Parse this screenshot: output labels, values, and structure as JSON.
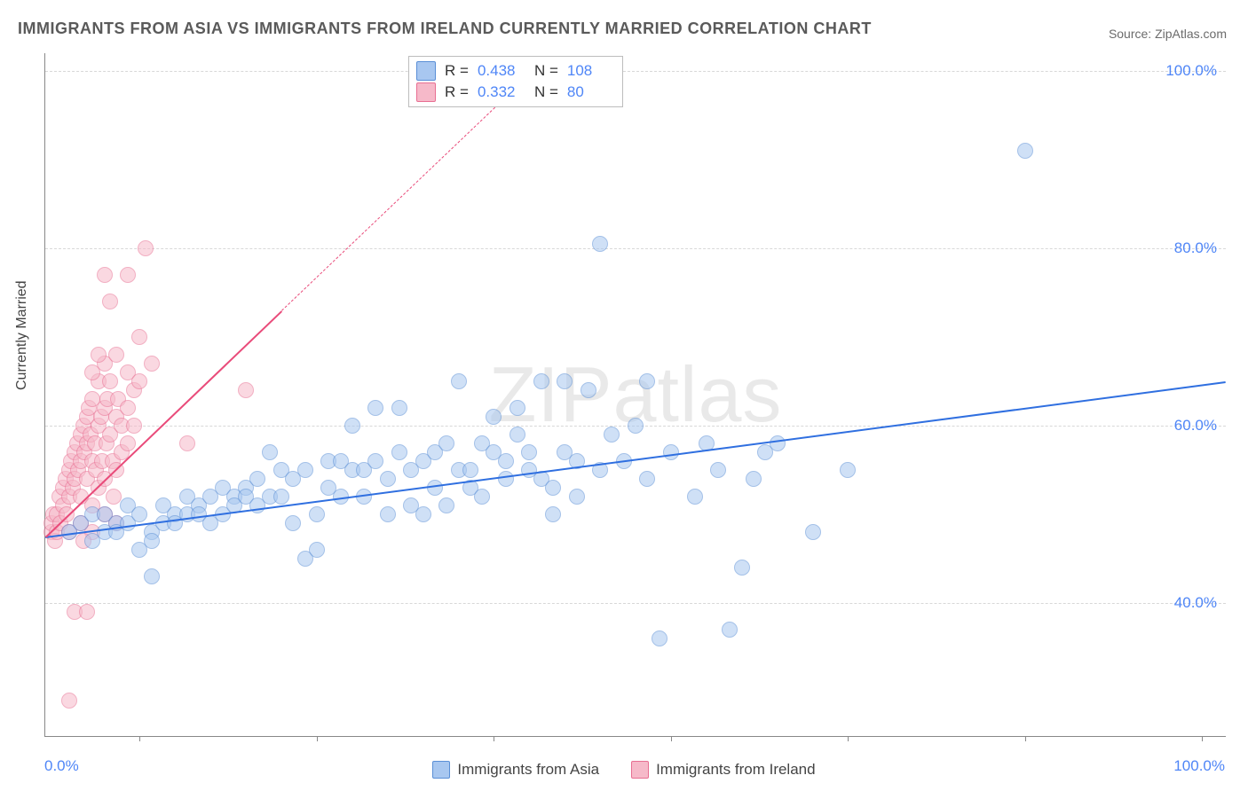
{
  "title": "IMMIGRANTS FROM ASIA VS IMMIGRANTS FROM IRELAND CURRENTLY MARRIED CORRELATION CHART",
  "source": "Source: ZipAtlas.com",
  "watermark": "ZIPatlas",
  "ylabel": "Currently Married",
  "chart": {
    "type": "scatter",
    "xlim": [
      0,
      100
    ],
    "ylim": [
      25,
      102
    ],
    "ytick_values": [
      40,
      60,
      80,
      100
    ],
    "ytick_labels": [
      "40.0%",
      "60.0%",
      "80.0%",
      "100.0%"
    ],
    "xtick_positions_pct": [
      8,
      23,
      38,
      53,
      68,
      83,
      98
    ],
    "x_lower_label": "0.0%",
    "x_upper_label": "100.0%",
    "background_color": "#ffffff",
    "grid_color": "#d8d8d8",
    "axis_color": "#888888",
    "marker_radius": 8,
    "marker_opacity": 0.55
  },
  "series": {
    "asia": {
      "label": "Immigrants from Asia",
      "fill_color": "#a8c7f0",
      "border_color": "#5a8fd6",
      "line_color": "#2f6fe0",
      "R": "0.438",
      "N": "108",
      "trend": {
        "x1": 0,
        "y1": 47.5,
        "x2": 100,
        "y2": 65,
        "width": 2.5,
        "dash": false
      },
      "points": [
        [
          2,
          48
        ],
        [
          3,
          49
        ],
        [
          4,
          50
        ],
        [
          4,
          47
        ],
        [
          5,
          48
        ],
        [
          5,
          50
        ],
        [
          6,
          49
        ],
        [
          6,
          48
        ],
        [
          7,
          49
        ],
        [
          7,
          51
        ],
        [
          8,
          50
        ],
        [
          8,
          46
        ],
        [
          9,
          48
        ],
        [
          9,
          47
        ],
        [
          10,
          49
        ],
        [
          10,
          51
        ],
        [
          11,
          50
        ],
        [
          11,
          49
        ],
        [
          12,
          50
        ],
        [
          12,
          52
        ],
        [
          13,
          51
        ],
        [
          13,
          50
        ],
        [
          14,
          52
        ],
        [
          14,
          49
        ],
        [
          15,
          50
        ],
        [
          15,
          53
        ],
        [
          16,
          52
        ],
        [
          16,
          51
        ],
        [
          17,
          53
        ],
        [
          17,
          52
        ],
        [
          18,
          54
        ],
        [
          18,
          51
        ],
        [
          19,
          57
        ],
        [
          19,
          52
        ],
        [
          20,
          55
        ],
        [
          20,
          52
        ],
        [
          21,
          54
        ],
        [
          21,
          49
        ],
        [
          22,
          55
        ],
        [
          22,
          45
        ],
        [
          23,
          50
        ],
        [
          23,
          46
        ],
        [
          24,
          53
        ],
        [
          24,
          56
        ],
        [
          25,
          56
        ],
        [
          25,
          52
        ],
        [
          26,
          60
        ],
        [
          26,
          55
        ],
        [
          27,
          55
        ],
        [
          27,
          52
        ],
        [
          28,
          62
        ],
        [
          28,
          56
        ],
        [
          29,
          54
        ],
        [
          29,
          50
        ],
        [
          30,
          62
        ],
        [
          30,
          57
        ],
        [
          31,
          55
        ],
        [
          31,
          51
        ],
        [
          32,
          50
        ],
        [
          32,
          56
        ],
        [
          33,
          57
        ],
        [
          33,
          53
        ],
        [
          34,
          51
        ],
        [
          34,
          58
        ],
        [
          35,
          55
        ],
        [
          35,
          65
        ],
        [
          36,
          55
        ],
        [
          36,
          53
        ],
        [
          37,
          52
        ],
        [
          37,
          58
        ],
        [
          38,
          61
        ],
        [
          38,
          57
        ],
        [
          39,
          56
        ],
        [
          39,
          54
        ],
        [
          40,
          59
        ],
        [
          40,
          62
        ],
        [
          41,
          57
        ],
        [
          41,
          55
        ],
        [
          42,
          65
        ],
        [
          42,
          54
        ],
        [
          43,
          53
        ],
        [
          43,
          50
        ],
        [
          44,
          65
        ],
        [
          44,
          57
        ],
        [
          45,
          56
        ],
        [
          45,
          52
        ],
        [
          46,
          64
        ],
        [
          47,
          80.5
        ],
        [
          47,
          55
        ],
        [
          48,
          59
        ],
        [
          49,
          56
        ],
        [
          50,
          60
        ],
        [
          51,
          54
        ],
        [
          51,
          65
        ],
        [
          52,
          36
        ],
        [
          53,
          57
        ],
        [
          55,
          52
        ],
        [
          56,
          58
        ],
        [
          57,
          55
        ],
        [
          58,
          37
        ],
        [
          59,
          44
        ],
        [
          60,
          54
        ],
        [
          61,
          57
        ],
        [
          62,
          58
        ],
        [
          65,
          48
        ],
        [
          68,
          55
        ],
        [
          83,
          91
        ],
        [
          9,
          43
        ]
      ]
    },
    "ireland": {
      "label": "Immigrants from Ireland",
      "fill_color": "#f6b9c9",
      "border_color": "#e86f92",
      "line_color": "#e94b7a",
      "R": "0.332",
      "N": "80",
      "trend_solid": {
        "x1": 0,
        "y1": 47.5,
        "x2": 20,
        "y2": 73,
        "width": 2.5,
        "dash": false
      },
      "trend_dash": {
        "x1": 20,
        "y1": 73,
        "x2": 40.5,
        "y2": 99,
        "width": 1.5,
        "dash": true
      },
      "points": [
        [
          0.5,
          48
        ],
        [
          0.5,
          49
        ],
        [
          0.7,
          50
        ],
        [
          0.8,
          47
        ],
        [
          1,
          48
        ],
        [
          1,
          50
        ],
        [
          1.2,
          52
        ],
        [
          1.3,
          49
        ],
        [
          1.5,
          51
        ],
        [
          1.5,
          53
        ],
        [
          1.7,
          54
        ],
        [
          1.8,
          50
        ],
        [
          2,
          55
        ],
        [
          2,
          52
        ],
        [
          2,
          48
        ],
        [
          2.2,
          56
        ],
        [
          2.3,
          53
        ],
        [
          2.5,
          57
        ],
        [
          2.5,
          54
        ],
        [
          2.7,
          58
        ],
        [
          2.8,
          55
        ],
        [
          3,
          59
        ],
        [
          3,
          56
        ],
        [
          3,
          52
        ],
        [
          3,
          49
        ],
        [
          3.2,
          60
        ],
        [
          3.3,
          57
        ],
        [
          3.5,
          61
        ],
        [
          3.5,
          58
        ],
        [
          3.5,
          54
        ],
        [
          3.7,
          62
        ],
        [
          3.8,
          59
        ],
        [
          4,
          63
        ],
        [
          4,
          56
        ],
        [
          4,
          51
        ],
        [
          4,
          48
        ],
        [
          4.2,
          58
        ],
        [
          4.3,
          55
        ],
        [
          4.5,
          65
        ],
        [
          4.5,
          60
        ],
        [
          4.5,
          53
        ],
        [
          4.7,
          61
        ],
        [
          4.8,
          56
        ],
        [
          5,
          67
        ],
        [
          5,
          62
        ],
        [
          5,
          54
        ],
        [
          5,
          50
        ],
        [
          5.2,
          58
        ],
        [
          5.3,
          63
        ],
        [
          5.5,
          65
        ],
        [
          5.5,
          59
        ],
        [
          5.7,
          56
        ],
        [
          5.8,
          52
        ],
        [
          6,
          68
        ],
        [
          6,
          61
        ],
        [
          6,
          55
        ],
        [
          6,
          49
        ],
        [
          6.2,
          63
        ],
        [
          6.5,
          60
        ],
        [
          6.5,
          57
        ],
        [
          7,
          77
        ],
        [
          7,
          66
        ],
        [
          7,
          62
        ],
        [
          7,
          58
        ],
        [
          7.5,
          64
        ],
        [
          7.5,
          60
        ],
        [
          8,
          70
        ],
        [
          8,
          65
        ],
        [
          2,
          29
        ],
        [
          2.5,
          39
        ],
        [
          3.5,
          39
        ],
        [
          4,
          66
        ],
        [
          4.5,
          68
        ],
        [
          5,
          77
        ],
        [
          5.5,
          74
        ],
        [
          8.5,
          80
        ],
        [
          9,
          67
        ],
        [
          12,
          58
        ],
        [
          17,
          64
        ],
        [
          3.2,
          47
        ]
      ]
    }
  }
}
